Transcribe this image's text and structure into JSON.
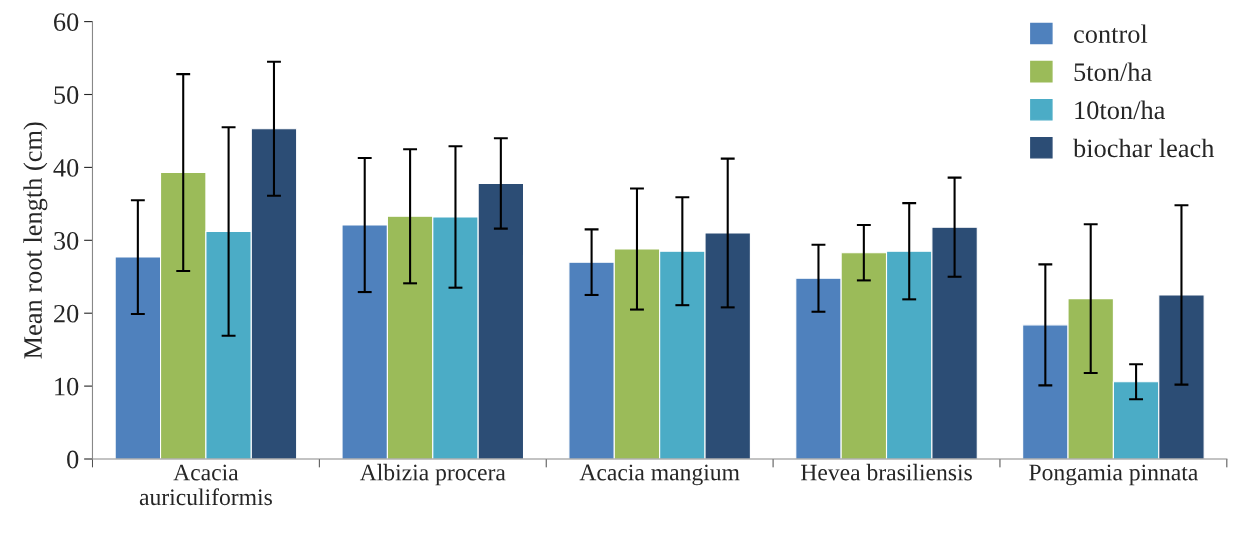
{
  "chart_data": {
    "type": "bar",
    "ylabel": "Mean root length (cm)",
    "categories": [
      "Acacia\nauriculiformis",
      "Albizia procera",
      "Acacia mangium",
      "Hevea brasiliensis",
      "Pongamia pinnata"
    ],
    "series": [
      {
        "name": "control",
        "color": "#4f81bd",
        "values": [
          27.7,
          32.1,
          27.0,
          24.8,
          18.4
        ],
        "errors": [
          7.8,
          9.2,
          4.5,
          4.6,
          8.3
        ]
      },
      {
        "name": "5ton/ha",
        "color": "#9bbb59",
        "values": [
          39.3,
          33.3,
          28.8,
          28.3,
          22.0
        ],
        "errors": [
          13.5,
          9.2,
          8.3,
          3.8,
          10.2
        ]
      },
      {
        "name": "10ton/ha",
        "color": "#4bacc6",
        "values": [
          31.2,
          33.2,
          28.5,
          28.5,
          10.6
        ],
        "errors": [
          14.3,
          9.7,
          7.4,
          6.6,
          2.4
        ]
      },
      {
        "name": "biochar leach",
        "color": "#2c4d75",
        "values": [
          45.3,
          37.8,
          31.0,
          31.8,
          22.5
        ],
        "errors": [
          9.2,
          6.2,
          10.2,
          6.8,
          12.3
        ]
      }
    ],
    "ylim": [
      0,
      60
    ],
    "yticks": [
      0,
      10,
      20,
      30,
      40,
      50,
      60
    ],
    "grid": false,
    "legend": "top right"
  }
}
